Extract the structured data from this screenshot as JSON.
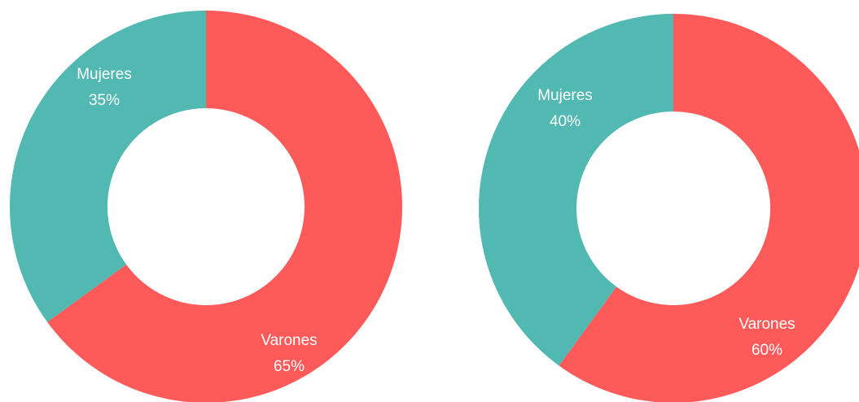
{
  "chart_data": [
    {
      "type": "donut",
      "categories": [
        "Varones",
        "Mujeres"
      ],
      "values": [
        65,
        35
      ],
      "value_labels": [
        "65%",
        "35%"
      ],
      "colors": [
        "#ff5a5a",
        "#52b8b2"
      ]
    },
    {
      "type": "donut",
      "categories": [
        "Varones",
        "Mujeres"
      ],
      "values": [
        60,
        40
      ],
      "value_labels": [
        "60%",
        "40%"
      ],
      "colors": [
        "#ff5a5a",
        "#52b8b2"
      ]
    }
  ]
}
